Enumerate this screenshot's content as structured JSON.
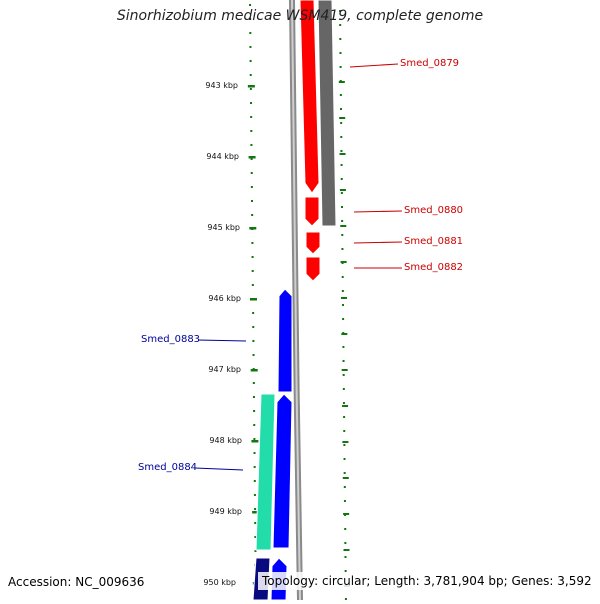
{
  "title": "Sinorhizobium medicae WSM419, complete genome",
  "footer": {
    "accession": "Accession: NC_009636",
    "topology": "Topology: circular; Length: 3,781,904 bp; Genes: 3,592"
  },
  "colors": {
    "forward_strand": "#ff0000",
    "forward_strand_segment": "#666666",
    "reverse_strand": "#0000ff",
    "reverse_strand_segment": "#0a0a80",
    "teal_gene": "#22ddaa",
    "ruler": "#117711",
    "forward_label": "#cc0000",
    "reverse_label": "#000099"
  },
  "ruler_ticks": [
    "943 kbp",
    "944 kbp",
    "945 kbp",
    "946 kbp",
    "947 kbp",
    "948 kbp",
    "949 kbp",
    "950 kbp"
  ],
  "genes": [
    {
      "name": "Smed_0879",
      "strand": "forward"
    },
    {
      "name": "Smed_0880",
      "strand": "forward"
    },
    {
      "name": "Smed_0881",
      "strand": "forward"
    },
    {
      "name": "Smed_0882",
      "strand": "forward"
    },
    {
      "name": "Smed_0883",
      "strand": "reverse"
    },
    {
      "name": "Smed_0884",
      "strand": "reverse"
    }
  ]
}
